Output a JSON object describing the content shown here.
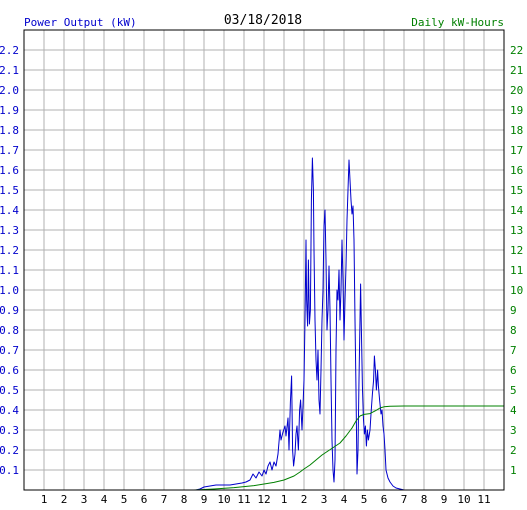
{
  "chart_data": {
    "type": "line",
    "title": "03/18/2018",
    "left_axis_label": "Power Output (kW)",
    "right_axis_label": "Daily kW-Hours",
    "x_tick_labels": [
      "1",
      "2",
      "3",
      "4",
      "5",
      "6",
      "7",
      "8",
      "9",
      "10",
      "11",
      "12",
      "1",
      "2",
      "3",
      "4",
      "5",
      "6",
      "7",
      "8",
      "9",
      "10",
      "11"
    ],
    "x_unit": "hour of day",
    "xlim": [
      0,
      24
    ],
    "left_ylim": [
      0,
      2.3
    ],
    "left_ticks": [
      "0.1",
      "0.2",
      "0.3",
      "0.4",
      "0.5",
      "0.6",
      "0.7",
      "0.8",
      "0.9",
      "1.0",
      "1.1",
      "1.2",
      "1.3",
      "1.4",
      "1.5",
      "1.6",
      "1.7",
      "1.8",
      "1.9",
      "2.0",
      "2.1",
      "2.2"
    ],
    "right_ylim": [
      0,
      23
    ],
    "right_ticks": [
      "1",
      "2",
      "3",
      "4",
      "5",
      "6",
      "7",
      "8",
      "9",
      "10",
      "11",
      "12",
      "13",
      "14",
      "15",
      "16",
      "17",
      "18",
      "19",
      "20",
      "21",
      "22"
    ],
    "grid": true,
    "colors": {
      "power": "#0000cc",
      "energy": "#008000",
      "grid": "#b0b0b0"
    },
    "series": [
      {
        "axis": "left",
        "color": "#0000cc",
        "points": [
          [
            8.6,
            0
          ],
          [
            8.8,
            0.005
          ],
          [
            9.0,
            0.015
          ],
          [
            9.3,
            0.02
          ],
          [
            9.6,
            0.025
          ],
          [
            10.0,
            0.025
          ],
          [
            10.3,
            0.025
          ],
          [
            10.6,
            0.03
          ],
          [
            10.9,
            0.035
          ],
          [
            11.1,
            0.04
          ],
          [
            11.3,
            0.05
          ],
          [
            11.45,
            0.08
          ],
          [
            11.6,
            0.06
          ],
          [
            11.75,
            0.09
          ],
          [
            11.9,
            0.07
          ],
          [
            12.0,
            0.1
          ],
          [
            12.1,
            0.08
          ],
          [
            12.2,
            0.12
          ],
          [
            12.3,
            0.14
          ],
          [
            12.4,
            0.1
          ],
          [
            12.5,
            0.14
          ],
          [
            12.6,
            0.12
          ],
          [
            12.7,
            0.18
          ],
          [
            12.8,
            0.3
          ],
          [
            12.85,
            0.25
          ],
          [
            12.95,
            0.29
          ],
          [
            13.05,
            0.32
          ],
          [
            13.1,
            0.27
          ],
          [
            13.2,
            0.36
          ],
          [
            13.25,
            0.2
          ],
          [
            13.32,
            0.44
          ],
          [
            13.38,
            0.57
          ],
          [
            13.43,
            0.2
          ],
          [
            13.48,
            0.12
          ],
          [
            13.55,
            0.18
          ],
          [
            13.6,
            0.28
          ],
          [
            13.65,
            0.32
          ],
          [
            13.72,
            0.2
          ],
          [
            13.78,
            0.4
          ],
          [
            13.83,
            0.45
          ],
          [
            13.9,
            0.3
          ],
          [
            13.95,
            0.42
          ],
          [
            14.0,
            0.55
          ],
          [
            14.05,
            0.85
          ],
          [
            14.1,
            1.25
          ],
          [
            14.13,
            0.95
          ],
          [
            14.18,
            0.82
          ],
          [
            14.22,
            1.15
          ],
          [
            14.27,
            0.83
          ],
          [
            14.32,
            0.9
          ],
          [
            14.37,
            1.45
          ],
          [
            14.42,
            1.66
          ],
          [
            14.47,
            1.5
          ],
          [
            14.5,
            1.2
          ],
          [
            14.55,
            0.85
          ],
          [
            14.6,
            0.65
          ],
          [
            14.65,
            0.55
          ],
          [
            14.7,
            0.7
          ],
          [
            14.75,
            0.45
          ],
          [
            14.8,
            0.38
          ],
          [
            14.85,
            0.6
          ],
          [
            14.9,
            0.85
          ],
          [
            14.95,
            1.0
          ],
          [
            15.0,
            1.32
          ],
          [
            15.05,
            1.4
          ],
          [
            15.1,
            1.15
          ],
          [
            15.15,
            0.8
          ],
          [
            15.2,
            0.9
          ],
          [
            15.25,
            1.12
          ],
          [
            15.3,
            0.9
          ],
          [
            15.35,
            0.55
          ],
          [
            15.4,
            0.25
          ],
          [
            15.45,
            0.1
          ],
          [
            15.5,
            0.04
          ],
          [
            15.55,
            0.15
          ],
          [
            15.6,
            0.7
          ],
          [
            15.65,
            1.0
          ],
          [
            15.7,
            0.95
          ],
          [
            15.75,
            1.1
          ],
          [
            15.8,
            0.85
          ],
          [
            15.85,
            1.0
          ],
          [
            15.9,
            1.25
          ],
          [
            15.95,
            1.05
          ],
          [
            16.0,
            0.75
          ],
          [
            16.05,
            0.95
          ],
          [
            16.1,
            1.12
          ],
          [
            16.15,
            1.35
          ],
          [
            16.2,
            1.5
          ],
          [
            16.25,
            1.65
          ],
          [
            16.3,
            1.55
          ],
          [
            16.35,
            1.45
          ],
          [
            16.4,
            1.38
          ],
          [
            16.45,
            1.42
          ],
          [
            16.5,
            1.25
          ],
          [
            16.55,
            0.85
          ],
          [
            16.6,
            0.5
          ],
          [
            16.65,
            0.08
          ],
          [
            16.7,
            0.2
          ],
          [
            16.75,
            0.55
          ],
          [
            16.8,
            0.85
          ],
          [
            16.83,
            1.03
          ],
          [
            16.87,
            0.8
          ],
          [
            16.92,
            0.52
          ],
          [
            16.97,
            0.36
          ],
          [
            17.02,
            0.28
          ],
          [
            17.07,
            0.32
          ],
          [
            17.12,
            0.22
          ],
          [
            17.17,
            0.3
          ],
          [
            17.22,
            0.25
          ],
          [
            17.3,
            0.3
          ],
          [
            17.35,
            0.38
          ],
          [
            17.42,
            0.48
          ],
          [
            17.48,
            0.55
          ],
          [
            17.52,
            0.67
          ],
          [
            17.57,
            0.6
          ],
          [
            17.62,
            0.5
          ],
          [
            17.68,
            0.6
          ],
          [
            17.72,
            0.52
          ],
          [
            17.78,
            0.45
          ],
          [
            17.85,
            0.38
          ],
          [
            17.9,
            0.4
          ],
          [
            17.95,
            0.32
          ],
          [
            18.0,
            0.28
          ],
          [
            18.05,
            0.2
          ],
          [
            18.1,
            0.1
          ],
          [
            18.2,
            0.06
          ],
          [
            18.3,
            0.04
          ],
          [
            18.45,
            0.02
          ],
          [
            18.6,
            0.01
          ],
          [
            18.8,
            0.005
          ],
          [
            19.0,
            0
          ]
        ]
      },
      {
        "axis": "right",
        "color": "#008000",
        "points": [
          [
            8.5,
            0
          ],
          [
            9.5,
            0.05
          ],
          [
            10.5,
            0.12
          ],
          [
            11.5,
            0.22
          ],
          [
            12.5,
            0.38
          ],
          [
            13.0,
            0.5
          ],
          [
            13.5,
            0.7
          ],
          [
            13.8,
            0.9
          ],
          [
            14.0,
            1.05
          ],
          [
            14.3,
            1.25
          ],
          [
            14.6,
            1.5
          ],
          [
            14.9,
            1.75
          ],
          [
            15.2,
            1.95
          ],
          [
            15.5,
            2.15
          ],
          [
            15.8,
            2.35
          ],
          [
            16.1,
            2.7
          ],
          [
            16.4,
            3.1
          ],
          [
            16.6,
            3.45
          ],
          [
            16.8,
            3.7
          ],
          [
            17.0,
            3.78
          ],
          [
            17.3,
            3.82
          ],
          [
            17.6,
            3.98
          ],
          [
            17.8,
            4.1
          ],
          [
            18.0,
            4.16
          ],
          [
            18.3,
            4.19
          ],
          [
            19.0,
            4.2
          ],
          [
            24.0,
            4.2
          ]
        ]
      }
    ]
  }
}
